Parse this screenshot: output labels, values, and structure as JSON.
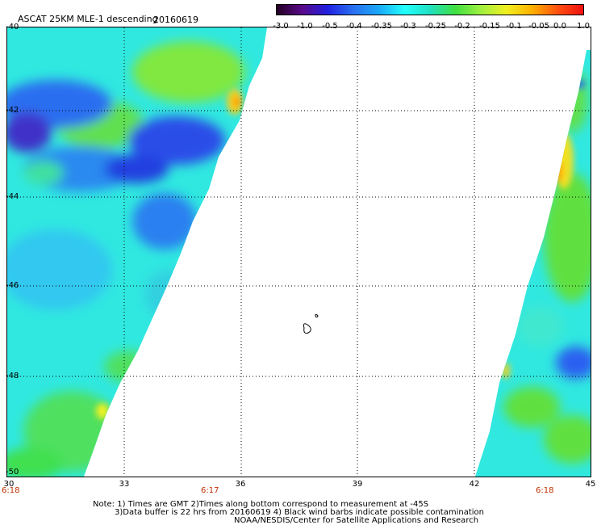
{
  "header": {
    "title": "ASCAT 25KM MLE-1 descending",
    "date": "20160619"
  },
  "colorbar": {
    "labels": [
      "-3.0",
      "-1.0",
      "-0.5",
      "-0.4",
      "-0.35",
      "-0.3",
      "-0.25",
      "-0.2",
      "-0.15",
      "-0.1",
      "-0.05",
      "0.0",
      "1.0"
    ],
    "colors": [
      "#220022",
      "#5a0a8a",
      "#2020e0",
      "#2a70f0",
      "#1aa8f8",
      "#22ffff",
      "#20e0c0",
      "#40e040",
      "#a0f040",
      "#f0f020",
      "#ffb000",
      "#ff5010",
      "#ee1010"
    ]
  },
  "axes": {
    "x_ticks": [
      "30",
      "33",
      "36",
      "39",
      "42",
      "45"
    ],
    "y_ticks": [
      "-40",
      "-42",
      "-44",
      "-46",
      "-48",
      "-50"
    ],
    "time_labels": [
      "6:18",
      "6:17",
      "6:18"
    ]
  },
  "notes": {
    "line1": "Note: 1) Times are GMT 2)Times along bottom correspond to measurement at -45S",
    "line2": "3)Data buffer is 22 hrs from 20160619 4) Black wind barbs indicate possible contamination",
    "line3": "NOAA/NESDIS/Center for Satellite Applications and Research"
  }
}
